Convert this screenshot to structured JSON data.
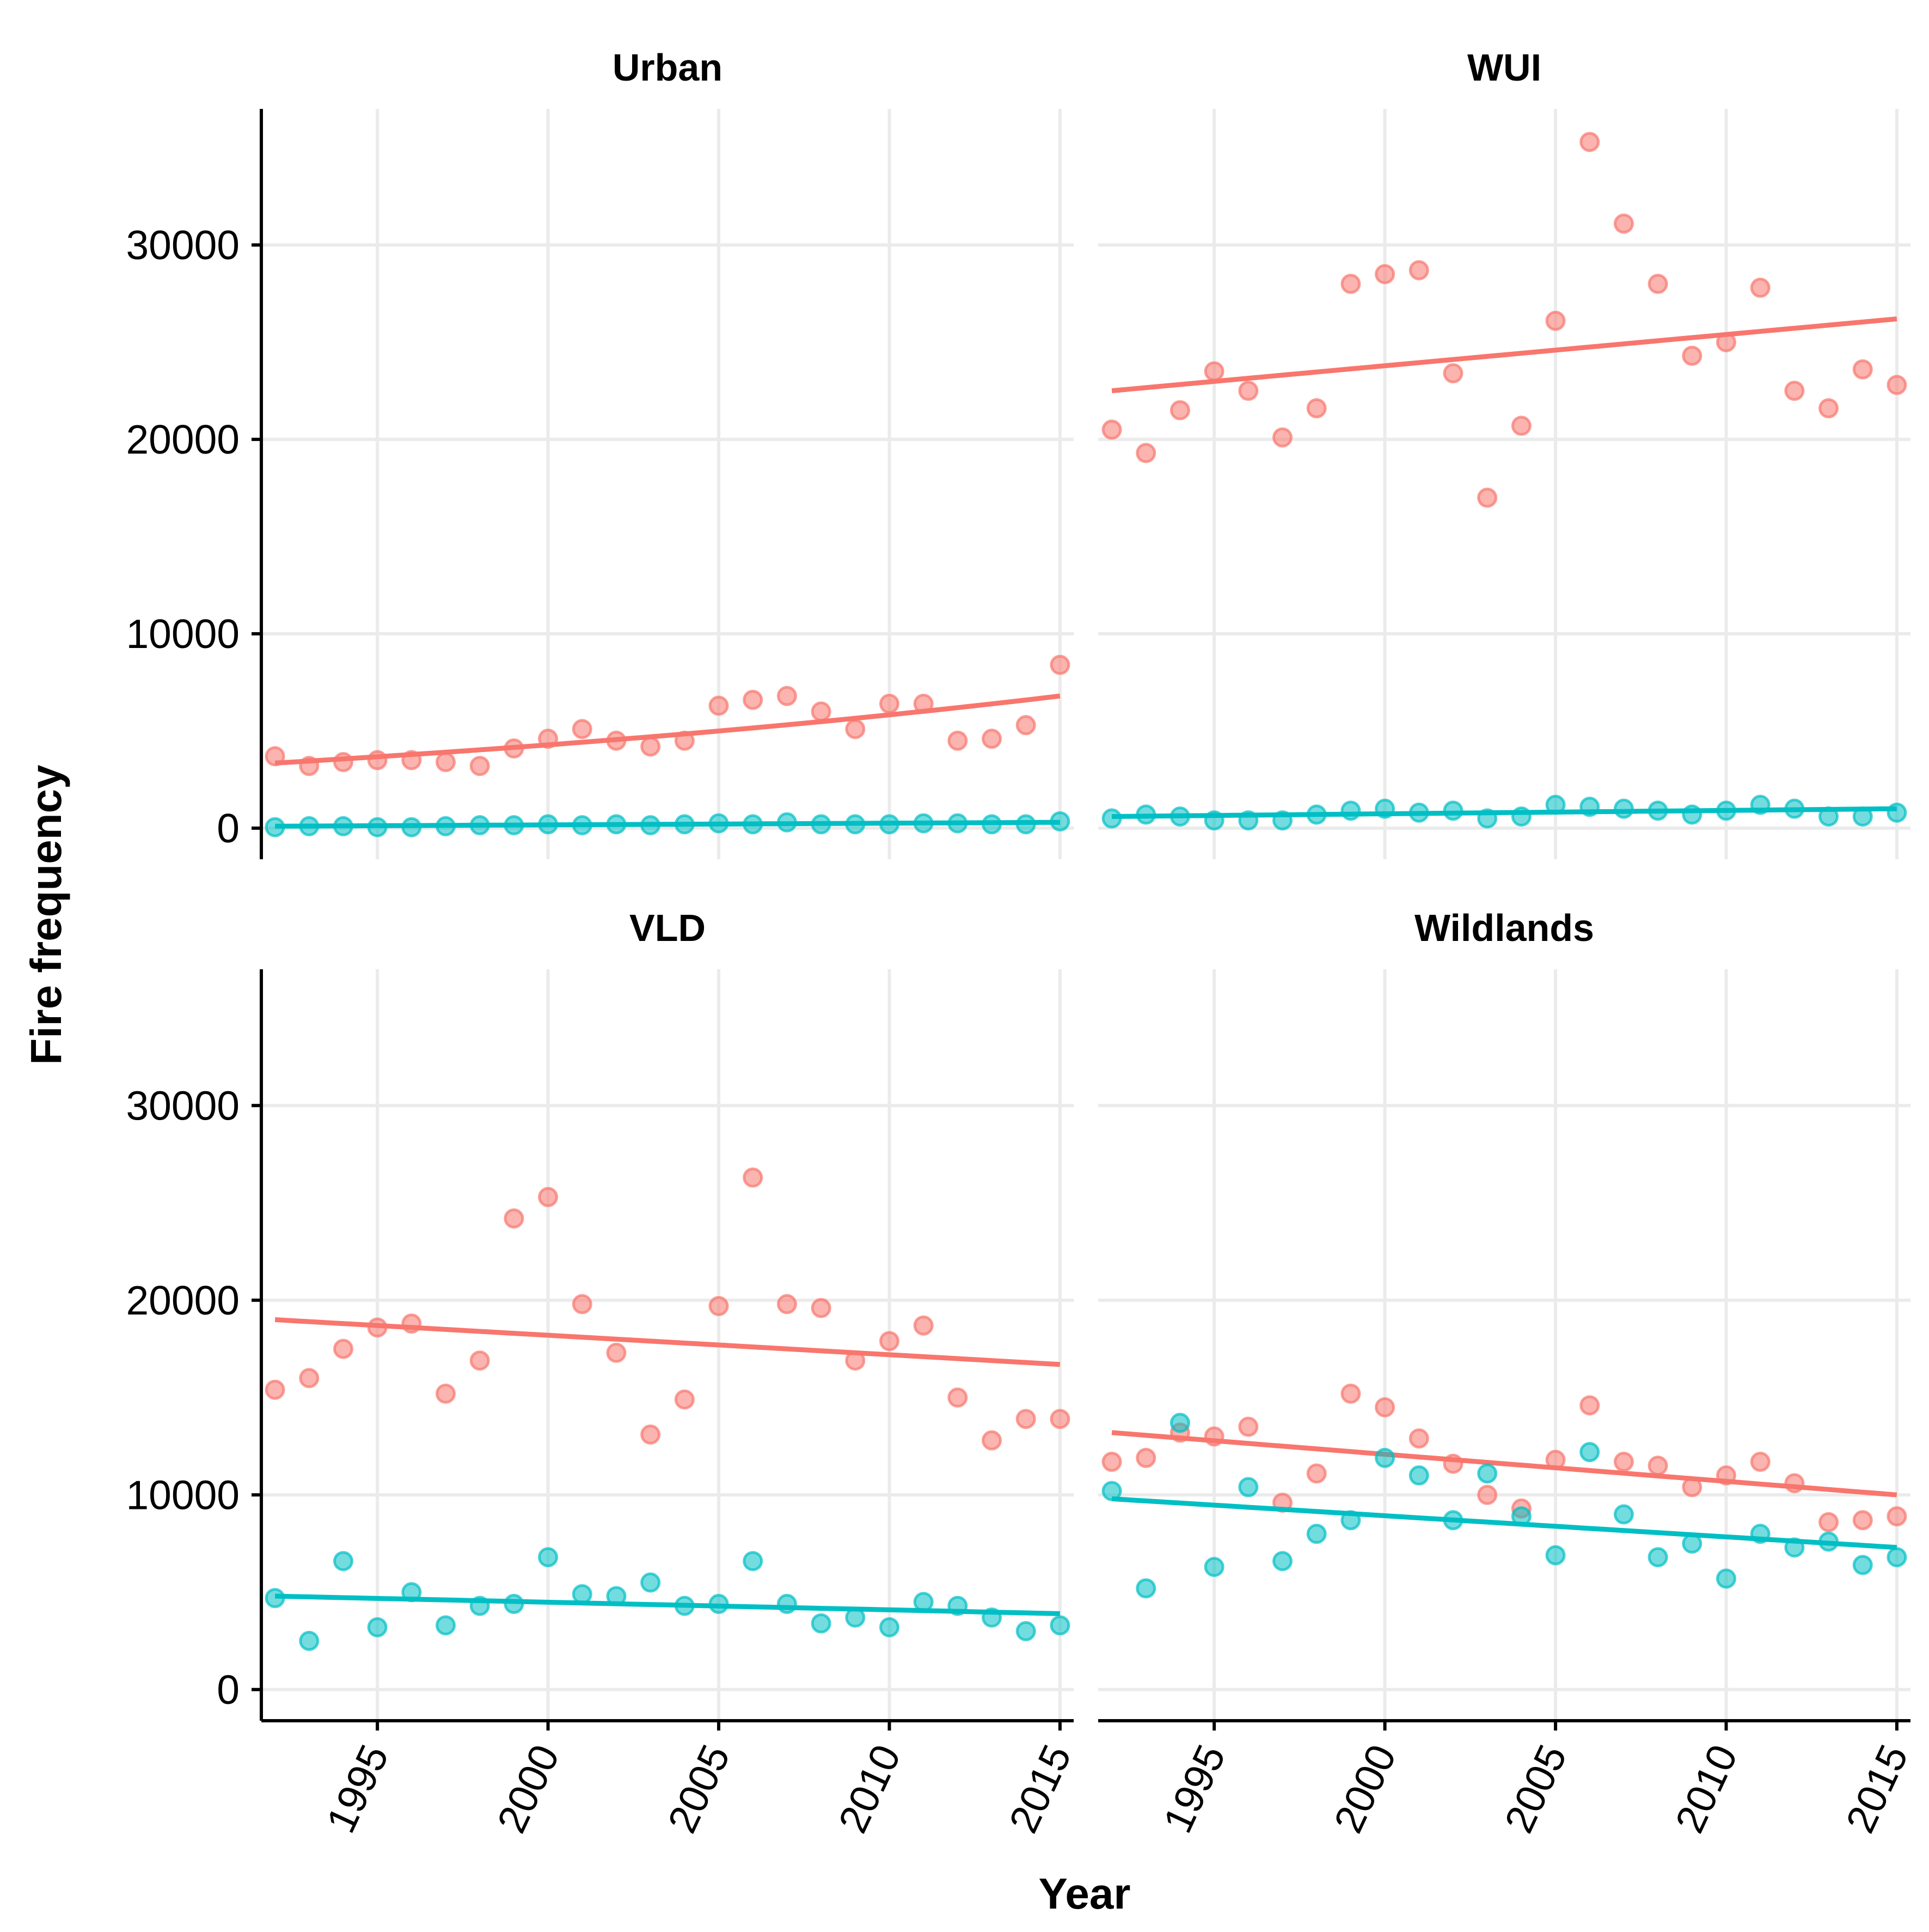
{
  "chart_data": {
    "type": "scatter",
    "xlabel": "Year",
    "ylabel": "Fire frequency",
    "xlim": [
      1991.6,
      2015.4
    ],
    "ylim": [
      -1600,
      37000
    ],
    "x_ticks": [
      1995,
      2000,
      2005,
      2010,
      2015
    ],
    "y_ticks": [
      0,
      10000,
      20000,
      30000
    ],
    "grid": true,
    "series_colors": [
      "#F8766D",
      "#00BFC4"
    ],
    "years": [
      1992,
      1993,
      1994,
      1995,
      1996,
      1997,
      1998,
      1999,
      2000,
      2001,
      2002,
      2003,
      2004,
      2005,
      2006,
      2007,
      2008,
      2009,
      2010,
      2011,
      2012,
      2013,
      2014,
      2015
    ],
    "panels": [
      {
        "title": "Urban",
        "series": [
          {
            "values": [
              3700,
              3200,
              3400,
              3500,
              3500,
              3400,
              3200,
              4100,
              4600,
              5100,
              4500,
              4200,
              4500,
              6300,
              6600,
              6800,
              6000,
              5100,
              6400,
              6400,
              4500,
              4600,
              5300,
              8400
            ],
            "trend": [
              3350,
              6800
            ],
            "trend_shape": "exponential"
          },
          {
            "values": [
              50,
              100,
              100,
              50,
              50,
              100,
              150,
              150,
              200,
              150,
              200,
              150,
              200,
              250,
              200,
              300,
              200,
              200,
              200,
              250,
              250,
              200,
              200,
              350
            ],
            "trend": [
              100,
              300
            ],
            "trend_shape": "linear"
          }
        ]
      },
      {
        "title": "WUI",
        "series": [
          {
            "values": [
              20500,
              19300,
              21500,
              23500,
              22500,
              20100,
              21600,
              28000,
              28500,
              28700,
              23400,
              17000,
              20700,
              26100,
              35300,
              31100,
              28000,
              24300,
              25000,
              27800,
              22500,
              21600,
              23600,
              22800
            ],
            "trend": [
              22500,
              26200
            ],
            "trend_shape": "linear"
          },
          {
            "values": [
              500,
              700,
              600,
              400,
              400,
              400,
              700,
              900,
              1000,
              800,
              900,
              500,
              600,
              1200,
              1100,
              1000,
              900,
              700,
              900,
              1200,
              1000,
              600,
              600,
              800
            ],
            "trend": [
              600,
              1000
            ],
            "trend_shape": "linear"
          }
        ]
      },
      {
        "title": "VLD",
        "series": [
          {
            "values": [
              15400,
              16000,
              17500,
              18600,
              18800,
              15200,
              16900,
              24200,
              25300,
              19800,
              17300,
              13100,
              14900,
              19700,
              26300,
              19800,
              19600,
              16900,
              17900,
              18700,
              15000,
              12800,
              13900,
              13900
            ],
            "trend": [
              19000,
              16700
            ],
            "trend_shape": "linear"
          },
          {
            "values": [
              4700,
              2500,
              6600,
              3200,
              5000,
              3300,
              4300,
              4400,
              6800,
              4900,
              4800,
              5500,
              4300,
              4400,
              6600,
              4400,
              3400,
              3700,
              3200,
              4500,
              4300,
              3700,
              3000,
              3300
            ],
            "trend": [
              4800,
              3900
            ],
            "trend_shape": "linear"
          }
        ]
      },
      {
        "title": "Wildlands",
        "series": [
          {
            "values": [
              11700,
              11900,
              13200,
              13000,
              13500,
              9600,
              11100,
              15200,
              14500,
              12900,
              11600,
              10000,
              9300,
              11800,
              14600,
              11700,
              11500,
              10400,
              11000,
              11700,
              10600,
              8600,
              8700,
              8900
            ],
            "trend": [
              13200,
              10000
            ],
            "trend_shape": "linear"
          },
          {
            "values": [
              10200,
              5200,
              13700,
              6300,
              10400,
              6600,
              8000,
              8700,
              11900,
              11000,
              8700,
              11100,
              8900,
              6900,
              12200,
              9000,
              6800,
              7500,
              5700,
              8000,
              7300,
              7600,
              6400,
              6800
            ],
            "trend": [
              9800,
              7300
            ],
            "trend_shape": "linear"
          }
        ]
      }
    ]
  }
}
